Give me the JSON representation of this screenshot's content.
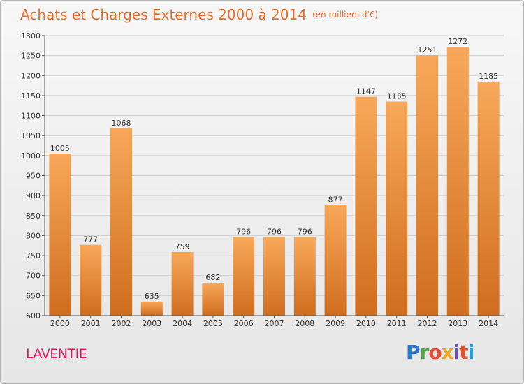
{
  "title": "Achats et Charges Externes 2000 à 2014",
  "unit": "(en milliers d'€)",
  "city": "LAVENTIE",
  "logo": {
    "letters": [
      "P",
      "r",
      "o",
      "x",
      "i",
      "t",
      "i"
    ],
    "colors": [
      "#2a78c8",
      "#4fa844",
      "#e94b2f",
      "#f5a623",
      "#7a4bb0",
      "#e94b2f",
      "#2a9bd6"
    ]
  },
  "colors": {
    "bar_light": "#f8a85a",
    "bar_dark": "#d06d1e",
    "accent": "#ee6b2a"
  },
  "chart_data": {
    "type": "bar",
    "title": "Achats et Charges Externes 2000 à 2014",
    "categories": [
      "2000",
      "2001",
      "2002",
      "2003",
      "2004",
      "2005",
      "2006",
      "2007",
      "2008",
      "2009",
      "2010",
      "2011",
      "2012",
      "2013",
      "2014"
    ],
    "values": [
      1005,
      777,
      1068,
      635,
      759,
      682,
      796,
      796,
      796,
      877,
      1147,
      1135,
      1251,
      1272,
      1185
    ],
    "ylim": [
      600,
      1300
    ],
    "yticks": [
      600,
      650,
      700,
      750,
      800,
      850,
      900,
      950,
      1000,
      1050,
      1100,
      1150,
      1200,
      1250,
      1300
    ],
    "grid": true,
    "xlabel": "",
    "ylabel": ""
  }
}
